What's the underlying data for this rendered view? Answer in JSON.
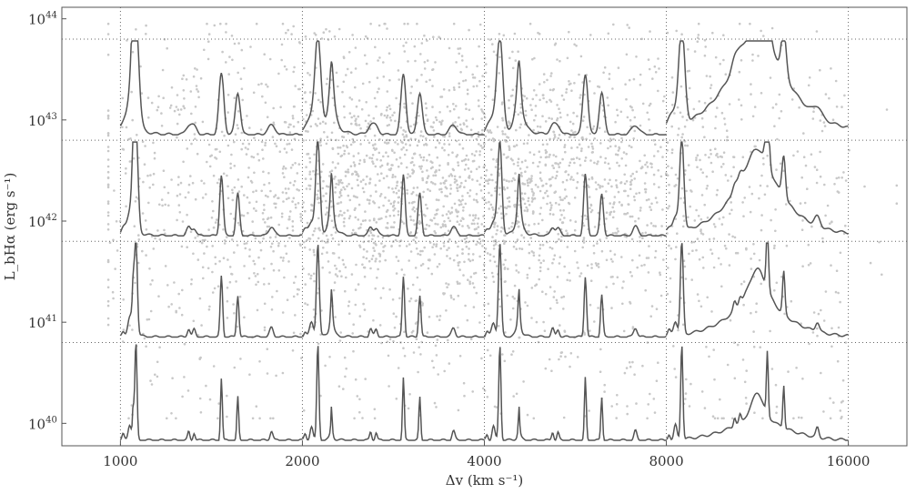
{
  "chart_data": {
    "type": "line",
    "title": "",
    "xlabel": "Δv (km s⁻¹)",
    "ylabel": "L_bHα (erg s⁻¹)",
    "xscale": "log",
    "yscale": "log",
    "xlim": [
      800,
      20000
    ],
    "ylim": [
      6e+39,
      1.3e+44
    ],
    "xticks": [
      {
        "value": 1000,
        "label": "1000"
      },
      {
        "value": 2000,
        "label": "2000"
      },
      {
        "value": 4000,
        "label": "4000"
      },
      {
        "value": 8000,
        "label": "8000"
      },
      {
        "value": 16000,
        "label": "16000"
      }
    ],
    "yticks": [
      {
        "value": 1e+40,
        "base": "10",
        "exp": "40"
      },
      {
        "value": 1e+41,
        "base": "10",
        "exp": "41"
      },
      {
        "value": 1e+42,
        "base": "10",
        "exp": "42"
      },
      {
        "value": 1e+43,
        "base": "10",
        "exp": "43"
      },
      {
        "value": 1e+44,
        "base": "10",
        "exp": "44"
      }
    ],
    "grid": {
      "x": true,
      "y": true,
      "style": "dotted"
    },
    "scatter": {
      "color": "#c8c8c8",
      "count": 3300,
      "x_range": [
        1000,
        16000
      ],
      "y_range": [
        1e+40,
        1e+44
      ],
      "peak_x": 3500,
      "peak_y": 2e+42
    },
    "panels": [
      {
        "ylim": [
          6e+39,
          6.3e+40
        ]
      },
      {
        "ylim": [
          6.3e+40,
          6.3e+41
        ]
      },
      {
        "ylim": [
          6.3e+41,
          6.3e+42
        ]
      },
      {
        "ylim": [
          6.3e+42,
          6.3e+43
        ]
      }
    ],
    "spectrum": {
      "color": "#555555",
      "segments": [
        {
          "x0": 1000,
          "x1": 2000
        },
        {
          "x0": 2000,
          "x1": 4000
        },
        {
          "x0": 4000,
          "x1": 8000
        },
        {
          "x0": 8000,
          "x1": 16000
        }
      ]
    }
  }
}
